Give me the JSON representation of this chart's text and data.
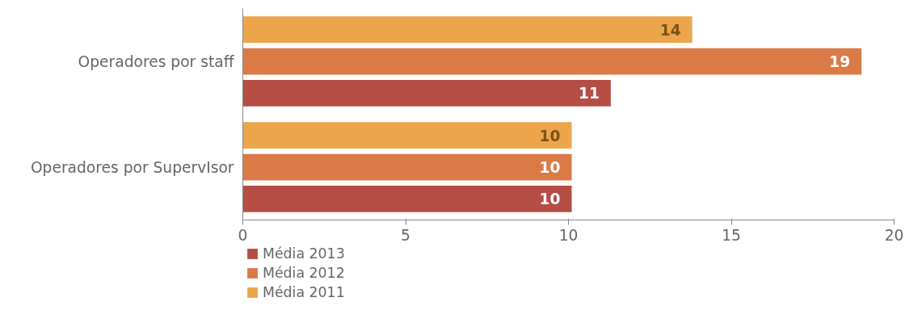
{
  "chart_data": {
    "type": "bar",
    "orientation": "horizontal",
    "categories": [
      "Operadores por staff",
      "Operadores por SupervIsor"
    ],
    "series": [
      {
        "name": "Média 2013",
        "color": "#b54d44",
        "values": [
          11.3,
          10.1
        ],
        "value_labels": [
          "11",
          "10"
        ]
      },
      {
        "name": "Média 2012",
        "color": "#da7a47",
        "values": [
          19,
          10.1
        ],
        "value_labels": [
          "19",
          "10"
        ]
      },
      {
        "name": "Média 2011",
        "color": "#eca54b",
        "values": [
          13.8,
          10.1
        ],
        "value_labels": [
          "14",
          "10"
        ]
      }
    ],
    "xlim": [
      0,
      20
    ],
    "xticks": [
      0,
      5,
      10,
      15,
      20
    ],
    "legend": "bottom left"
  }
}
